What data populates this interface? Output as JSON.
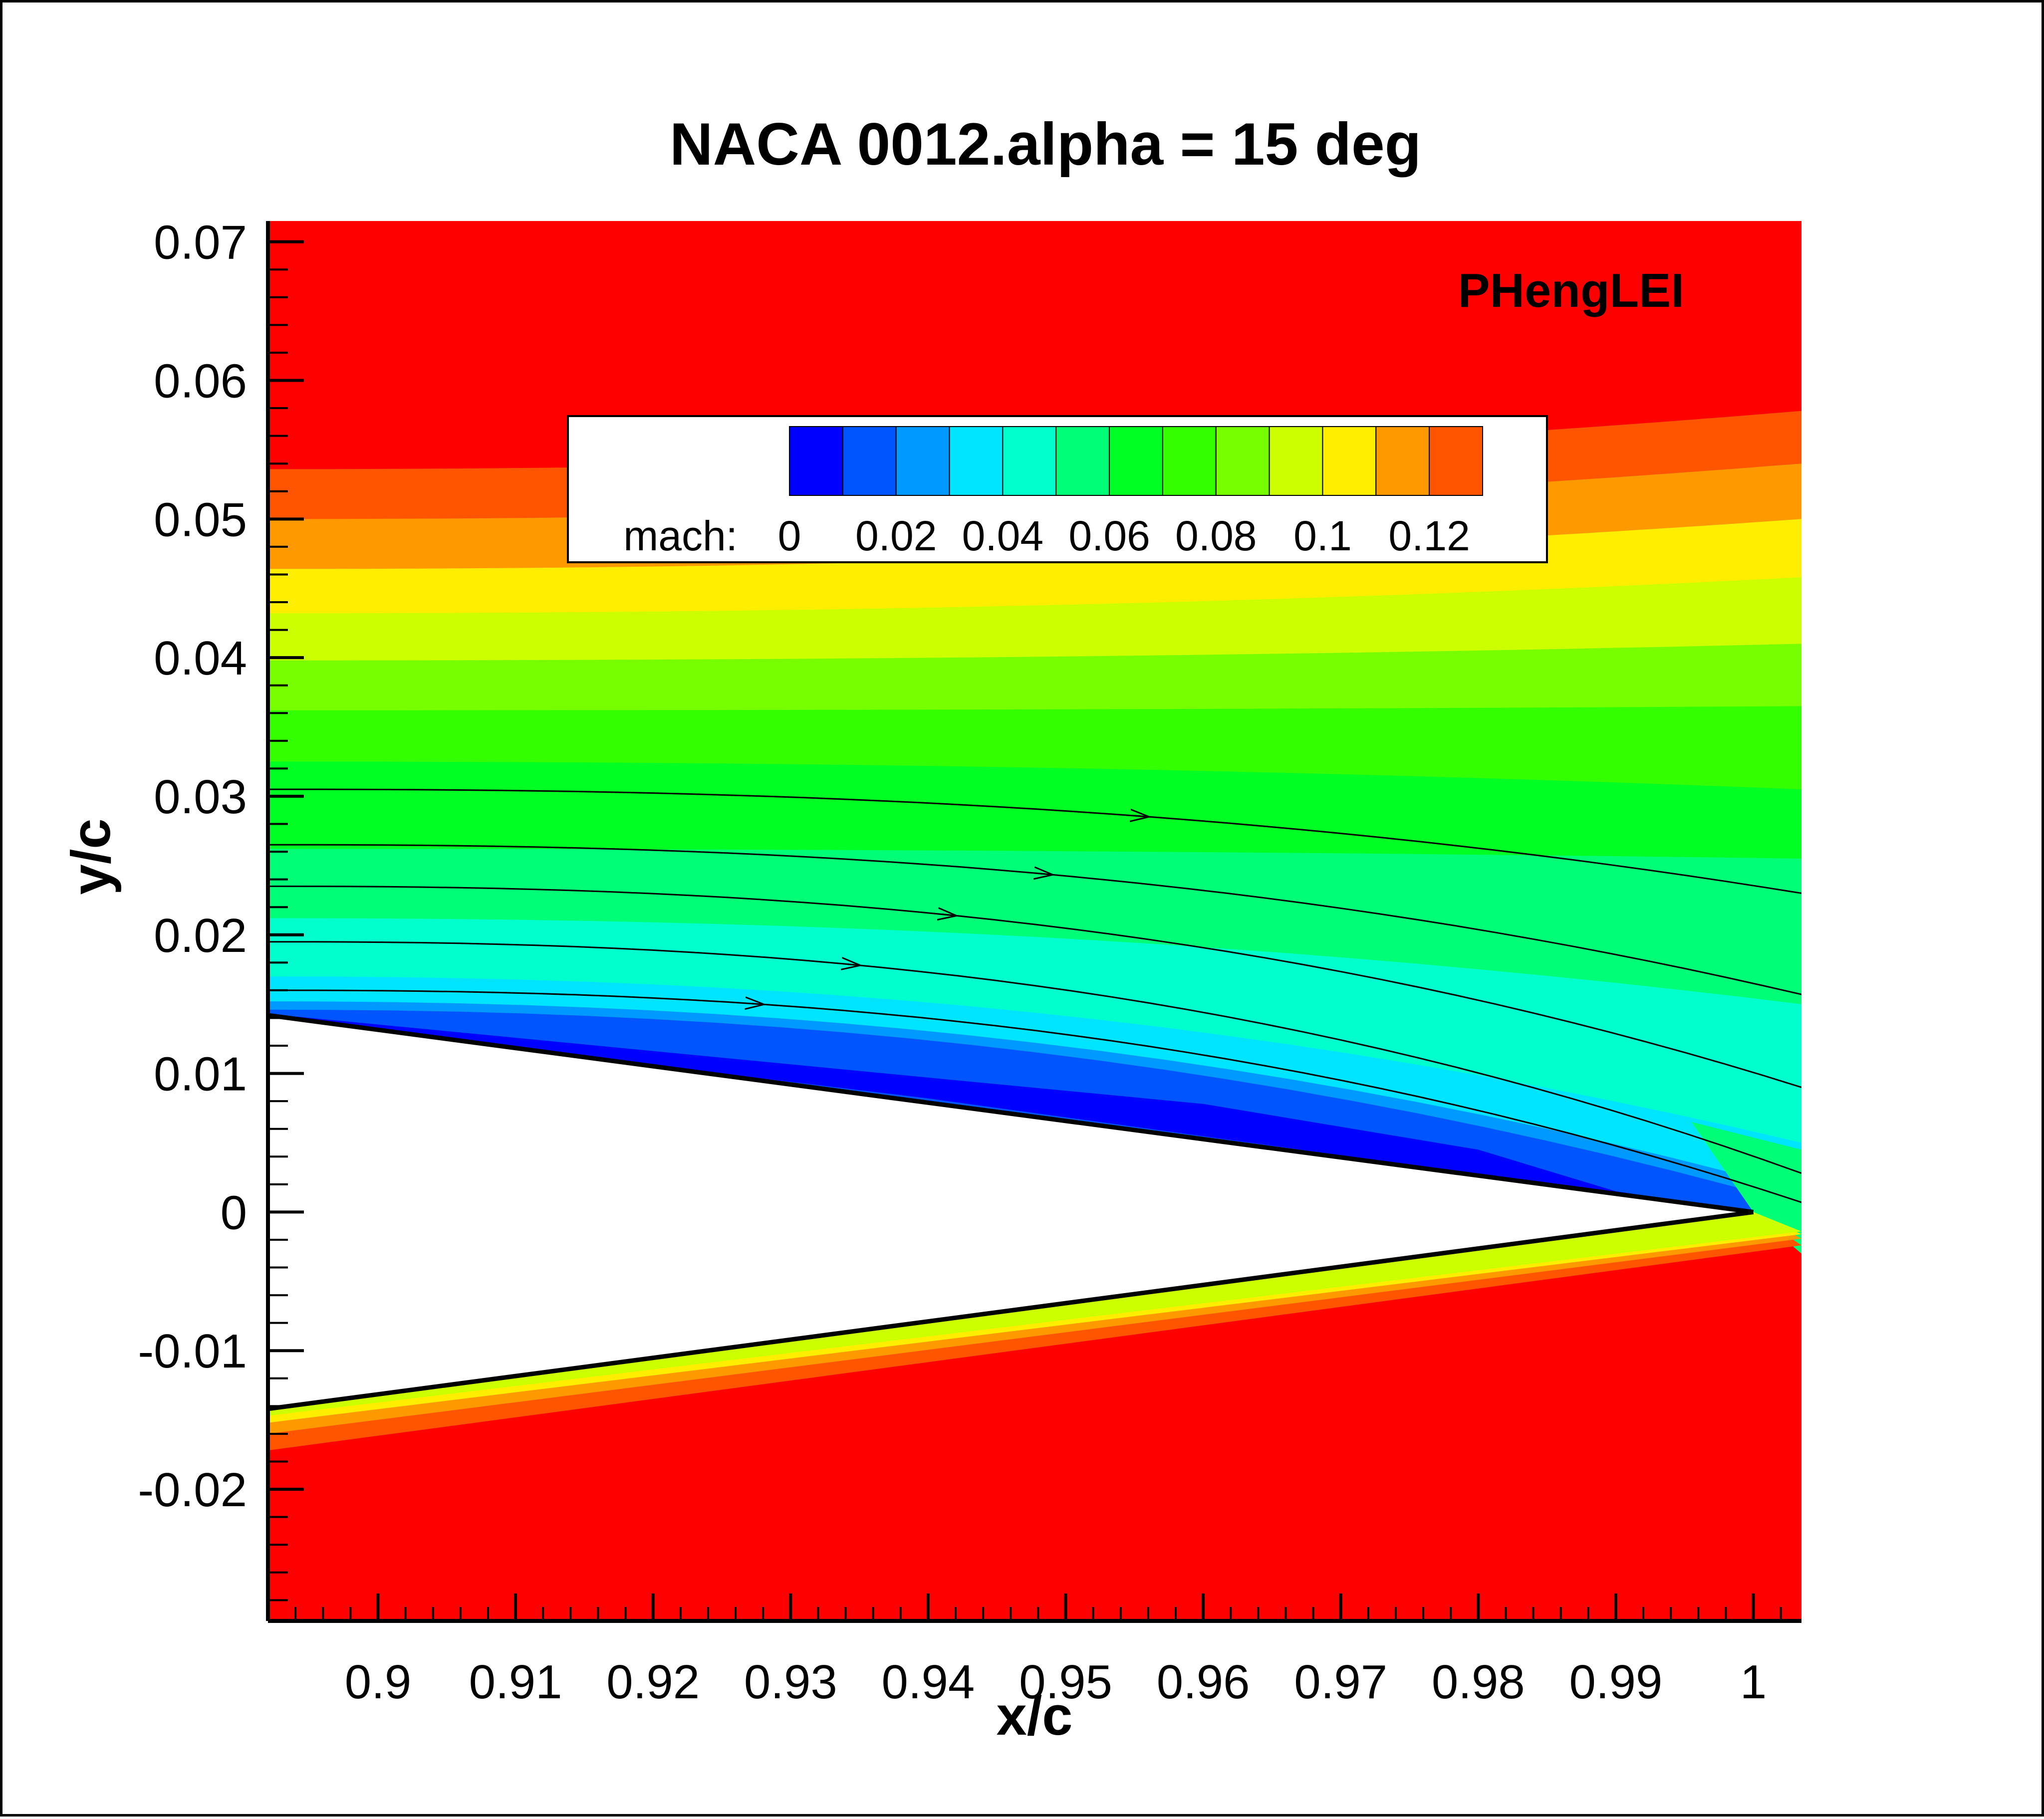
{
  "chart_data": {
    "type": "heatmap",
    "title": "NACA 0012.alpha = 15 deg",
    "xlabel": "x/c",
    "ylabel": "y/c",
    "annotation": "PHengLEI",
    "xlim": [
      0.892,
      1.0035
    ],
    "ylim": [
      -0.0295,
      0.0715
    ],
    "xticks": [
      0.9,
      0.91,
      0.92,
      0.93,
      0.94,
      0.95,
      0.96,
      0.97,
      0.98,
      0.99,
      1
    ],
    "xtick_labels": [
      "0.9",
      "0.91",
      "0.92",
      "0.93",
      "0.94",
      "0.95",
      "0.96",
      "0.97",
      "0.98",
      "0.99",
      "1"
    ],
    "yticks": [
      -0.02,
      -0.01,
      0,
      0.01,
      0.02,
      0.03,
      0.04,
      0.05,
      0.06,
      0.07
    ],
    "ytick_labels": [
      "-0.02",
      "-0.01",
      "0",
      "0.01",
      "0.02",
      "0.03",
      "0.04",
      "0.05",
      "0.06",
      "0.07"
    ],
    "legend": {
      "variable": "mach:",
      "placement": "top-center",
      "levels": [
        0,
        0.01,
        0.02,
        0.03,
        0.04,
        0.05,
        0.06,
        0.07,
        0.08,
        0.09,
        0.1,
        0.11,
        0.12,
        0.13
      ],
      "colors": [
        "#0000ff",
        "#0055ff",
        "#0099ff",
        "#00e5ff",
        "#00ffcc",
        "#00ff77",
        "#00ff22",
        "#33ff00",
        "#77ff00",
        "#ccff00",
        "#ffee00",
        "#ff9900",
        "#ff5500",
        "#ff0000"
      ],
      "label_values": [
        0,
        0.02,
        0.04,
        0.06,
        0.08,
        0.1,
        0.12
      ],
      "labels": [
        "0",
        "0.02",
        "0.04",
        "0.06",
        "0.08",
        "0.1",
        "0.12"
      ]
    },
    "airfoil": {
      "upper_surface": [
        [
          0.892,
          0.0142
        ],
        [
          1.0,
          0.0
        ]
      ],
      "lower_surface": [
        [
          0.892,
          -0.0142
        ],
        [
          1.0,
          0.0
        ]
      ]
    },
    "upper_field_bands": [
      {
        "level": 13,
        "y_at_left": 0.0536,
        "y_at_right": 0.0578
      },
      {
        "level": 12,
        "y_at_left": 0.05,
        "y_at_right": 0.054
      },
      {
        "level": 11,
        "y_at_left": 0.0464,
        "y_at_right": 0.05
      },
      {
        "level": 10,
        "y_at_left": 0.0432,
        "y_at_right": 0.0458
      },
      {
        "level": 9,
        "y_at_left": 0.0398,
        "y_at_right": 0.041
      },
      {
        "level": 8,
        "y_at_left": 0.0362,
        "y_at_right": 0.0365
      },
      {
        "level": 7,
        "y_at_left": 0.0325,
        "y_at_right": 0.0305
      },
      {
        "level": 6,
        "y_at_left": 0.0262,
        "y_at_right": 0.0255
      },
      {
        "level": 5,
        "y_at_left": 0.0212,
        "y_at_right": 0.015
      },
      {
        "level": 4,
        "y_at_left": 0.017,
        "y_at_right": 0.005
      },
      {
        "level": 3,
        "y_at_left": 0.0152,
        "y_at_right": 0.0015
      },
      {
        "level": 2,
        "y_at_left": 0.0146,
        "y_at_right": 0.0005
      }
    ],
    "streamlines": [
      {
        "y_start": 0.0305,
        "y_end": 0.023
      },
      {
        "y_start": 0.0265,
        "y_end": 0.0157
      },
      {
        "y_start": 0.0235,
        "y_end": 0.009
      },
      {
        "y_start": 0.0195,
        "y_end": 0.0028
      },
      {
        "y_start": 0.016,
        "y_end": 0.0007
      }
    ]
  }
}
